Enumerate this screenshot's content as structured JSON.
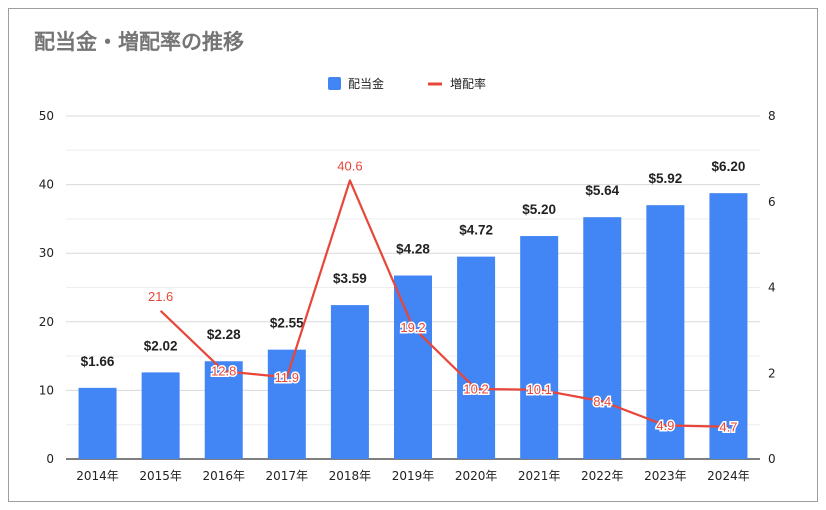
{
  "chart_data": {
    "type": "bar",
    "title": "配当金・増配率の推移",
    "categories": [
      "2014年",
      "2015年",
      "2016年",
      "2017年",
      "2018年",
      "2019年",
      "2020年",
      "2021年",
      "2022年",
      "2023年",
      "2024年"
    ],
    "series": [
      {
        "name": "配当金",
        "type": "bar",
        "axis": "right",
        "values": [
          1.66,
          2.02,
          2.28,
          2.55,
          3.59,
          4.28,
          4.72,
          5.2,
          5.64,
          5.92,
          6.2
        ],
        "labels": [
          "$1.66",
          "$2.02",
          "$2.28",
          "$2.55",
          "$3.59",
          "$4.28",
          "$4.72",
          "$5.20",
          "$5.64",
          "$5.92",
          "$6.20"
        ],
        "color": "#4285f4"
      },
      {
        "name": "増配率",
        "type": "line",
        "axis": "left",
        "values": [
          null,
          21.6,
          12.8,
          11.9,
          40.6,
          19.2,
          10.2,
          10.1,
          8.4,
          4.9,
          4.7
        ],
        "color": "#e8463a"
      }
    ],
    "y_left": {
      "ticks": [
        0,
        10,
        20,
        30,
        40,
        50
      ],
      "ylim": [
        0,
        50
      ]
    },
    "y_right": {
      "ticks": [
        0,
        2,
        4,
        6,
        8
      ],
      "ylim": [
        0,
        8
      ]
    },
    "grid": true,
    "legend": "top"
  }
}
